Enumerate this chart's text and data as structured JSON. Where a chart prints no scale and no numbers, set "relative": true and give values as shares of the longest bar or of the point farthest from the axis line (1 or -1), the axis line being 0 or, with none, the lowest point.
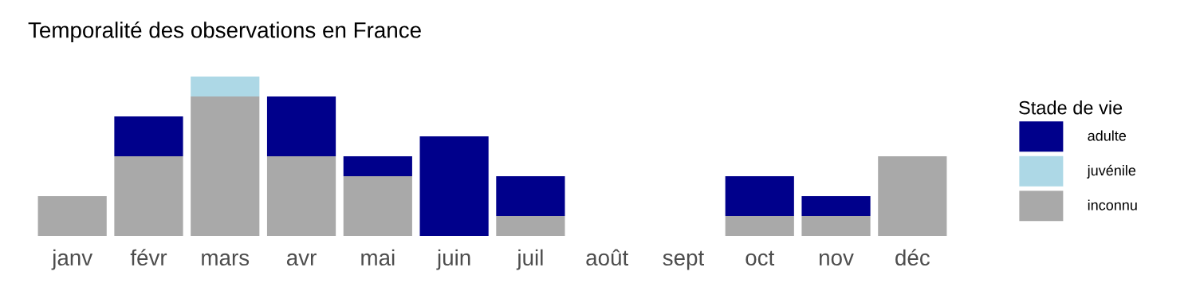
{
  "chart_data": {
    "type": "bar",
    "title": "Temporalité des observations en France",
    "relative": true,
    "stacked": true,
    "categories": [
      "janv",
      "févr",
      "mars",
      "avr",
      "mai",
      "juin",
      "juil",
      "août",
      "sept",
      "oct",
      "nov",
      "déc"
    ],
    "series": [
      {
        "name": "inconnu",
        "color": "#a9a9a9",
        "values": [
          0.25,
          0.5,
          0.875,
          0.5,
          0.375,
          0,
          0.125,
          0,
          0,
          0.125,
          0.125,
          0.5
        ]
      },
      {
        "name": "juvénile",
        "color": "#add8e6",
        "values": [
          0,
          0,
          0.125,
          0,
          0,
          0,
          0,
          0,
          0,
          0,
          0,
          0
        ]
      },
      {
        "name": "adulte",
        "color": "#00008b",
        "values": [
          0,
          0.25,
          0,
          0.375,
          0.125,
          0.625,
          0.25,
          0,
          0,
          0.25,
          0.125,
          0
        ]
      }
    ],
    "legend": "right",
    "legend_title": "Stade de vie",
    "tick_labels": "x",
    "grid": false
  }
}
